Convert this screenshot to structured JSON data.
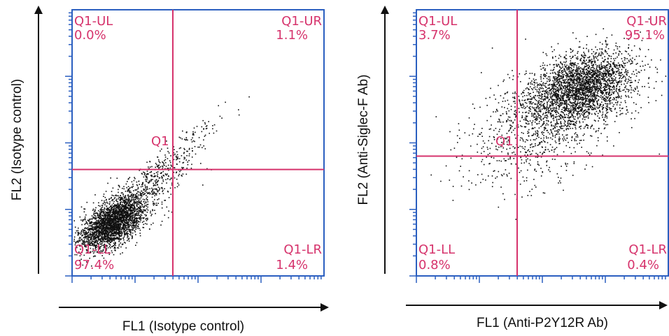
{
  "colors": {
    "frame": "#2b5fc0",
    "gate_line": "#d6336c",
    "points": "#111111",
    "axis_arrows": "#111111"
  },
  "chart_data": [
    {
      "type": "scatter",
      "title": "",
      "xlabel": "FL1 (Isotype control)",
      "ylabel": "FL2 (Isotype control)",
      "x_scale": "log",
      "y_scale": "log",
      "gate": "Q1",
      "quadrant_split": {
        "x": 0.4,
        "y": 0.4
      },
      "quadrants": [
        {
          "label": "Q1-UL",
          "percent": "0.0%"
        },
        {
          "label": "Q1-UR",
          "percent": "1.1%"
        },
        {
          "label": "Q1-LL",
          "percent": "97.4%"
        },
        {
          "label": "Q1-LR",
          "percent": "1.4%"
        }
      ],
      "clusters": [
        {
          "center": [
            0.16,
            0.2
          ],
          "spread": [
            0.065,
            0.05
          ],
          "corr": 0.55,
          "count": 2600
        },
        {
          "center": [
            0.3,
            0.34
          ],
          "spread": [
            0.09,
            0.07
          ],
          "corr": 0.8,
          "count": 500
        },
        {
          "center": [
            0.48,
            0.52
          ],
          "spread": [
            0.08,
            0.06
          ],
          "corr": 0.9,
          "count": 80
        }
      ]
    },
    {
      "type": "scatter",
      "title": "",
      "xlabel": "FL1 (Anti-P2Y12R Ab)",
      "ylabel": "FL2 (Anti-Siglec-F Ab)",
      "x_scale": "log",
      "y_scale": "log",
      "gate": "Q1",
      "quadrant_split": {
        "x": 0.4,
        "y": 0.45
      },
      "quadrants": [
        {
          "label": "Q1-UL",
          "percent": "3.7%"
        },
        {
          "label": "Q1-UR",
          "percent": "95.1%"
        },
        {
          "label": "Q1-LL",
          "percent": "0.8%"
        },
        {
          "label": "Q1-LR",
          "percent": "0.4%"
        }
      ],
      "clusters": [
        {
          "center": [
            0.66,
            0.71
          ],
          "spread": [
            0.1,
            0.07
          ],
          "corr": 0.35,
          "count": 2600
        },
        {
          "center": [
            0.52,
            0.6
          ],
          "spread": [
            0.14,
            0.11
          ],
          "corr": 0.3,
          "count": 800
        },
        {
          "center": [
            0.4,
            0.46
          ],
          "spread": [
            0.12,
            0.1
          ],
          "corr": 0.2,
          "count": 160
        }
      ]
    }
  ]
}
